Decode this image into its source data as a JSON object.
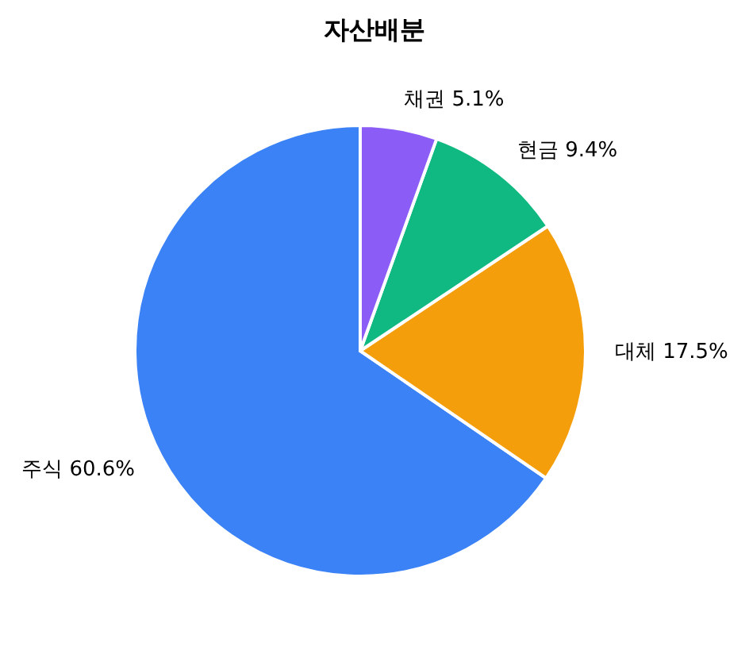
{
  "chart_data": {
    "type": "pie",
    "title": "자산배분",
    "categories": [
      "주식",
      "대체",
      "현금",
      "채권"
    ],
    "values": [
      60.6,
      17.5,
      9.4,
      5.1
    ],
    "value_labels": [
      "60.6%",
      "17.5%",
      "9.4%",
      "5.1%"
    ],
    "colors": [
      "#3b82f6",
      "#f59e0b",
      "#10b981",
      "#8b5cf6"
    ]
  }
}
